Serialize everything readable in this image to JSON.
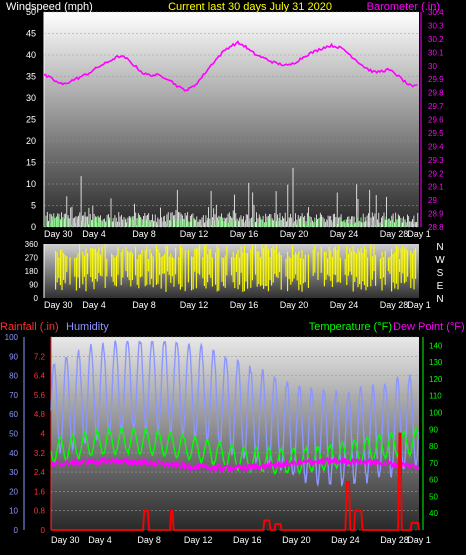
{
  "colors": {
    "background": "#000000",
    "panel_top": "#ffffff",
    "panel_bottom": "#2a2a2a",
    "wind_speed": "#ffffff",
    "wind_gust": "#ffffff",
    "wind_avg": "#8cf08c",
    "barometer": "#ff00ff",
    "direction": "#ffff00",
    "rain": "#ff0000",
    "humidity": "#8c96ff",
    "temperature": "#00ff00",
    "dewpoint": "#ff00ff",
    "title": "#ffff00"
  },
  "chart_data": [
    {
      "type": "line",
      "panel": "wind-baro",
      "title": "Current last 30 days July 31 2020",
      "ylabel_left": "Windspeed (mph)",
      "ylabel_right": "Barometer (.in)",
      "x_ticks": [
        "Day 30",
        "Day 4",
        "Day 8",
        "Day 12",
        "Day 16",
        "Day 20",
        "Day 24",
        "Day 28",
        "Day 1"
      ],
      "y_left_ticks": [
        "50",
        "45",
        "40",
        "35",
        "30",
        "25",
        "20",
        "15",
        "10",
        "5",
        "0"
      ],
      "y_left_range": [
        0,
        50
      ],
      "y_right_ticks": [
        "30.4",
        "30.3",
        "30.2",
        "30.1",
        "30",
        "29.9",
        "29.8",
        "29.7",
        "29.6",
        "29.5",
        "29.4",
        "29.3",
        "29.2",
        "29.1",
        "29",
        "28.9",
        "28.8"
      ],
      "y_right_range": [
        28.8,
        30.4
      ],
      "series": [
        {
          "name": "Barometer",
          "x": [
            0,
            0.5,
            1,
            1.5,
            2,
            2.5,
            3,
            3.5,
            4,
            4.5,
            5,
            5.5,
            6,
            6.5,
            7,
            7.5,
            8,
            8.5,
            9,
            9.5,
            10,
            10.5,
            11,
            11.5,
            12,
            12.5,
            13,
            13.5,
            14,
            14.5,
            15,
            15.5,
            16,
            16.5,
            17,
            17.5,
            18,
            18.5,
            19,
            19.5,
            20,
            20.5,
            21,
            21.5,
            22,
            22.5,
            23,
            23.5,
            24,
            24.5,
            25,
            25.5,
            26,
            26.5,
            27,
            27.5,
            28,
            28.5,
            29,
            29.5,
            30
          ],
          "values": [
            29.93,
            29.91,
            29.88,
            29.86,
            29.88,
            29.9,
            29.92,
            29.94,
            29.97,
            30.0,
            30.02,
            30.05,
            30.07,
            30.06,
            30.02,
            29.98,
            29.94,
            29.93,
            29.93,
            29.92,
            29.9,
            29.86,
            29.83,
            29.82,
            29.85,
            29.9,
            29.96,
            30.02,
            30.07,
            30.12,
            30.15,
            30.17,
            30.15,
            30.11,
            30.08,
            30.06,
            30.04,
            30.02,
            30.01,
            30.0,
            30.02,
            30.05,
            30.08,
            30.1,
            30.12,
            30.14,
            30.15,
            30.14,
            30.12,
            30.08,
            30.04,
            30.0,
            29.97,
            29.95,
            29.96,
            29.97,
            29.95,
            29.91,
            29.87,
            29.84,
            29.86
          ]
        }
      ]
    },
    {
      "type": "scatter",
      "panel": "direction",
      "y_ticks": [
        "360",
        "270",
        "180",
        "90",
        "0"
      ],
      "y_range": [
        0,
        360
      ],
      "compass_labels": [
        "N",
        "W",
        "S",
        "E",
        "N"
      ],
      "x_ticks": [
        "Day 30",
        "Day 4",
        "Day 8",
        "Day 12",
        "Day 16",
        "Day 20",
        "Day 24",
        "Day 28",
        "Day 1"
      ]
    },
    {
      "type": "line",
      "panel": "rain-hum-temp",
      "ylabel_rain": "Rainfall (.in)",
      "ylabel_humidity": "Humidity",
      "ylabel_temp": "Temperature (°F)",
      "ylabel_dew": "Dew Point (°F)",
      "y_humidity_ticks": [
        "100",
        "90",
        "80",
        "70",
        "60",
        "50",
        "40",
        "30",
        "20",
        "10",
        "0"
      ],
      "y_humidity_range": [
        0,
        100
      ],
      "y_rain_ticks": [
        "7.2",
        "6.4",
        "5.6",
        "4.8",
        "4",
        "3.2",
        "2.4",
        "1.6",
        "0.8",
        "0"
      ],
      "y_rain_range": [
        0,
        8
      ],
      "y_temp_ticks": [
        "140",
        "130",
        "120",
        "110",
        "100",
        "90",
        "80",
        "70",
        "60",
        "50",
        "40"
      ],
      "y_temp_range": [
        30,
        145
      ],
      "x_ticks": [
        "Day 30",
        "Day 4",
        "Day 8",
        "Day 12",
        "Day 16",
        "Day 20",
        "Day 24",
        "Day 28",
        "Day 1"
      ],
      "series": [
        {
          "name": "Rainfall",
          "points": [
            [
              0,
              0
            ],
            [
              7.5,
              0
            ],
            [
              7.6,
              0.8
            ],
            [
              7.9,
              0.8
            ],
            [
              8.0,
              0
            ],
            [
              9.7,
              0
            ],
            [
              9.8,
              0.8
            ],
            [
              9.9,
              0.8
            ],
            [
              10,
              0
            ],
            [
              17.3,
              0
            ],
            [
              17.4,
              0.4
            ],
            [
              17.8,
              0.4
            ],
            [
              17.9,
              0
            ],
            [
              18.2,
              0
            ],
            [
              18.3,
              0.25
            ],
            [
              18.7,
              0.25
            ],
            [
              18.8,
              0
            ],
            [
              24.0,
              0
            ],
            [
              24.1,
              2.0
            ],
            [
              24.3,
              2.0
            ],
            [
              24.4,
              0
            ],
            [
              24.7,
              0
            ],
            [
              24.8,
              0.8
            ],
            [
              25.3,
              0.8
            ],
            [
              25.4,
              0
            ],
            [
              28.3,
              0
            ],
            [
              28.4,
              4.0
            ],
            [
              28.5,
              4.0
            ],
            [
              28.6,
              0
            ],
            [
              29.3,
              0
            ],
            [
              29.4,
              0.3
            ],
            [
              29.9,
              0.3
            ],
            [
              30,
              0
            ]
          ]
        }
      ]
    }
  ]
}
